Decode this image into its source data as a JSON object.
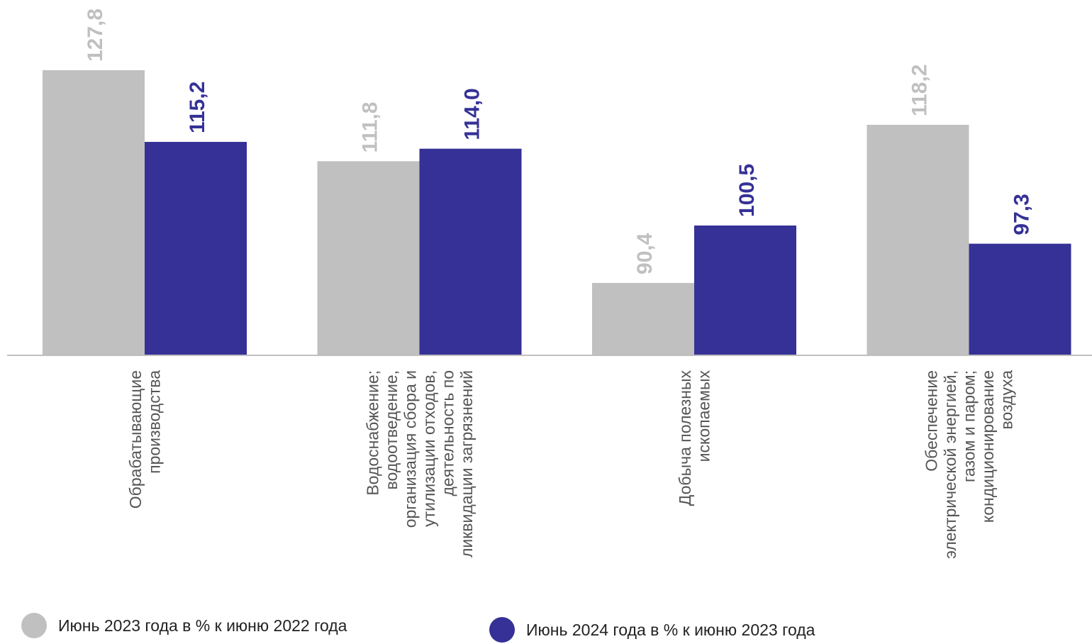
{
  "chart_data": {
    "type": "bar",
    "categories": [
      "Обрабатывающие производства",
      "Водоснабжение; водоотведение, организация сбора и утилизации отходов, деятельность по ликвидации загрязнений",
      "Добыча полезных ископаемых",
      "Обеспечение электрической энергией, газом и паром; кондиционирование воздуха"
    ],
    "category_lines": [
      [
        "Обрабатывающие",
        "производства"
      ],
      [
        "Водоснабжение;",
        "водоотведение,",
        "организация сбора и",
        "утилизации отходов,",
        "деятельность по",
        "ликвидации загрязнений"
      ],
      [
        "Добыча полезных",
        "ископаемых"
      ],
      [
        "Обеспечение",
        "электрической энергией,",
        "газом и паром;",
        "кондиционирование",
        "воздуха"
      ]
    ],
    "series": [
      {
        "name": "Июнь 2023 года в % к июню 2022 года",
        "values": [
          127.8,
          111.8,
          90.4,
          118.2
        ],
        "labels": [
          "127,8",
          "111,8",
          "90,4",
          "118,2"
        ],
        "color": "#c0c0c0"
      },
      {
        "name": "Июнь 2024 года в % к июню 2023 года",
        "values": [
          115.2,
          114.0,
          100.5,
          97.3
        ],
        "labels": [
          "115,2",
          "114,0",
          "100,5",
          "97,3"
        ],
        "color": "#353196"
      }
    ],
    "ylim": [
      77.8,
      127.8
    ],
    "axis_color": "#bfbfbf",
    "legend_position": "bottom",
    "grid": false
  }
}
